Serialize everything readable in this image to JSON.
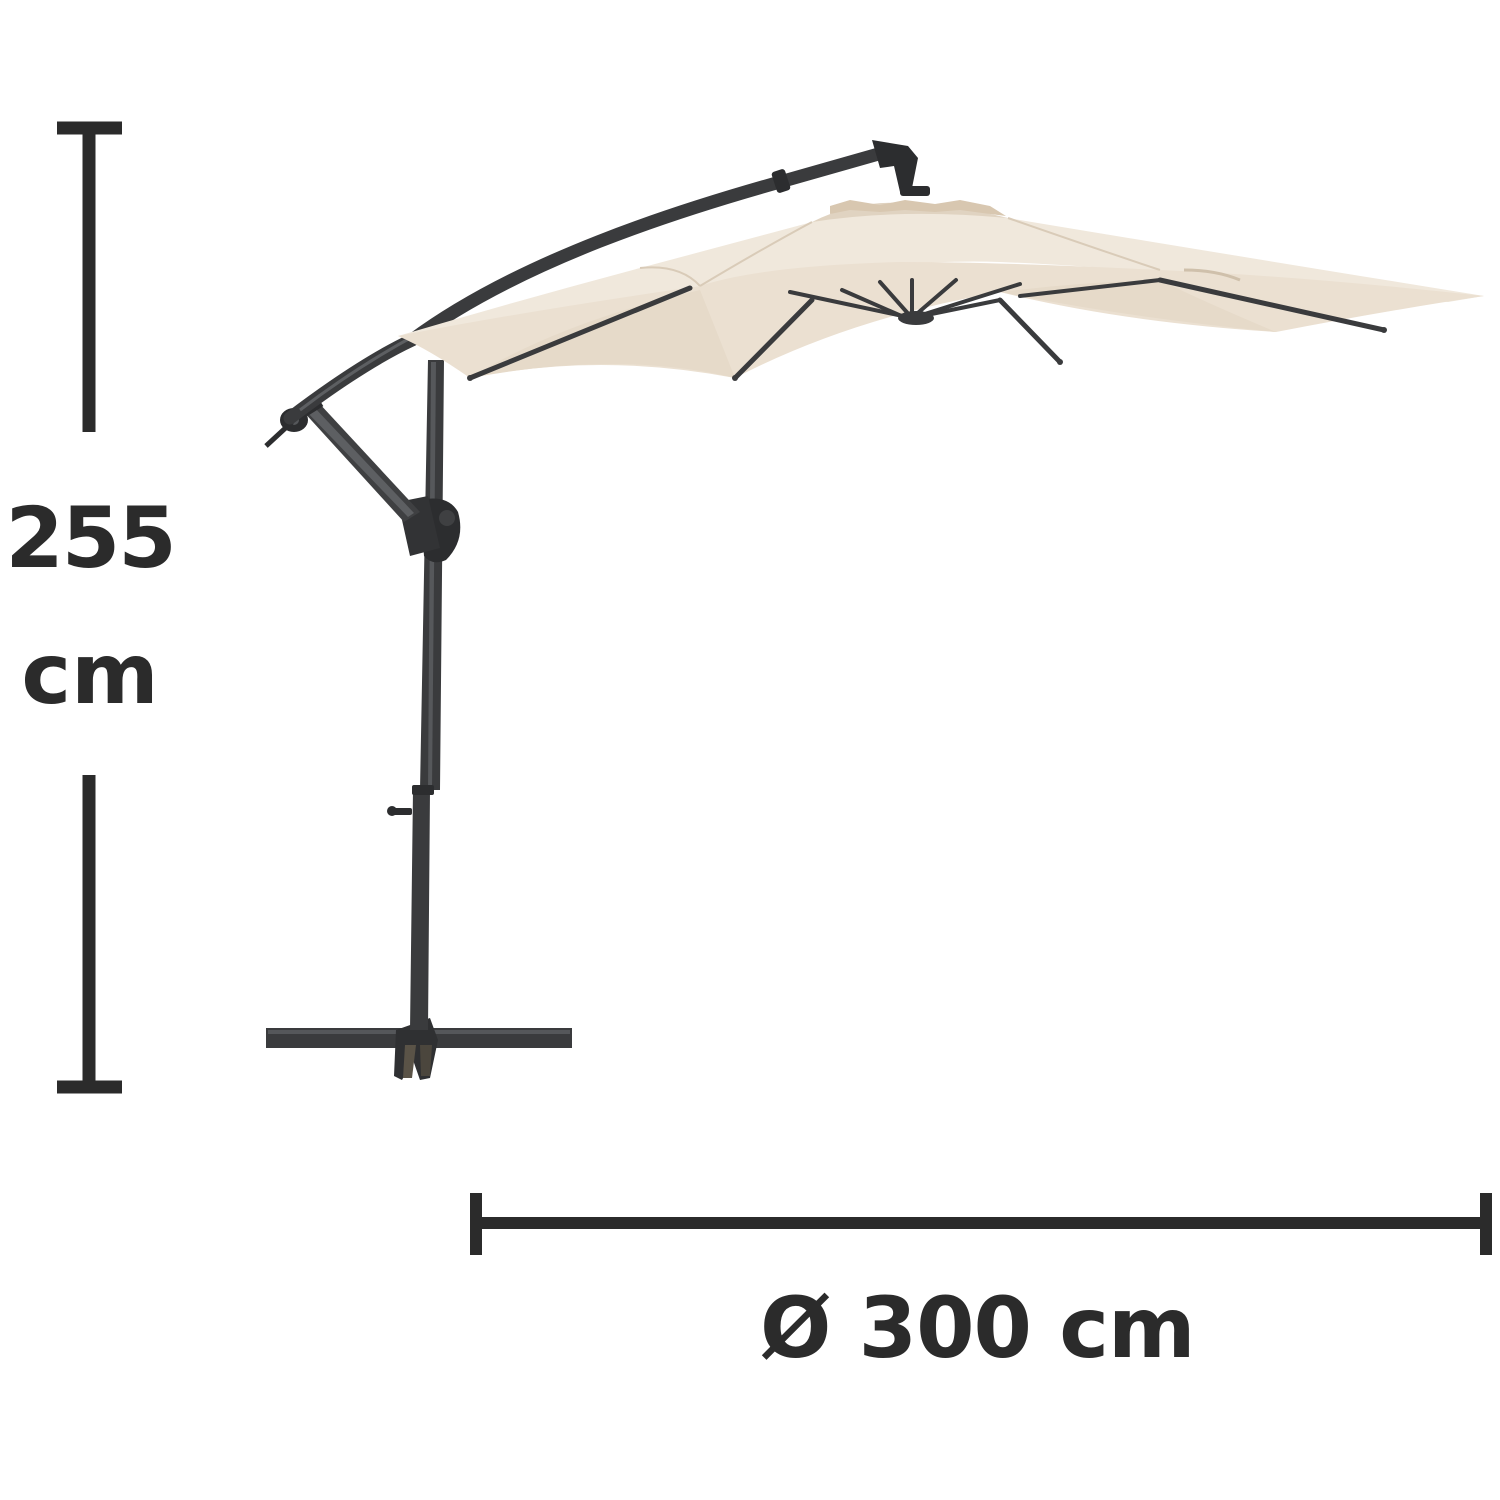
{
  "dimensions": {
    "height": {
      "value": "255",
      "unit": "cm"
    },
    "diameter": {
      "label": "Ø 300 cm"
    }
  },
  "product": {
    "icon": "cantilever-parasol-icon",
    "canopy_color": "#efe6da",
    "frame_color": "#3a3b3d"
  },
  "colors": {
    "dimension_line": "#2b2b2b"
  }
}
